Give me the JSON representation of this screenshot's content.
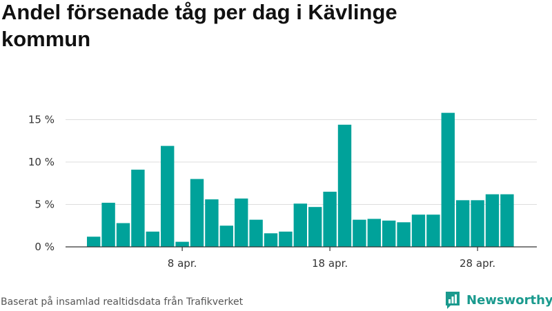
{
  "title": "Andel försenade tåg per dag i Kävlinge kommun",
  "footer": "Baserat på insamlad realtidsdata från Trafikverket",
  "brand": {
    "name": "Newsworthy",
    "icon": "newsworthy-logo-icon",
    "color": "#1a9a8e"
  },
  "chart_data": {
    "type": "bar",
    "title": "Andel försenade tåg per dag i Kävlinge kommun",
    "xlabel": "",
    "ylabel": "",
    "bar_color": "#00a29a",
    "ylim": [
      0,
      16.5
    ],
    "y_ticks": [
      0,
      5,
      10,
      15
    ],
    "y_tick_labels": [
      "0 %",
      "5 %",
      "10 %",
      "15 %"
    ],
    "x_ticks": [
      "2024-04-08",
      "2024-04-18",
      "2024-04-28"
    ],
    "x_tick_labels": [
      "8 apr.",
      "18 apr.",
      "28 apr."
    ],
    "grid": true,
    "categories": [
      "2024-04-02",
      "2024-04-03",
      "2024-04-04",
      "2024-04-05",
      "2024-04-06",
      "2024-04-07",
      "2024-04-08",
      "2024-04-09",
      "2024-04-10",
      "2024-04-11",
      "2024-04-12",
      "2024-04-13",
      "2024-04-14",
      "2024-04-15",
      "2024-04-16",
      "2024-04-17",
      "2024-04-18",
      "2024-04-19",
      "2024-04-20",
      "2024-04-21",
      "2024-04-22",
      "2024-04-23",
      "2024-04-24",
      "2024-04-25",
      "2024-04-26",
      "2024-04-27",
      "2024-04-28",
      "2024-04-29",
      "2024-04-30"
    ],
    "values": [
      1.2,
      5.2,
      2.8,
      9.1,
      1.8,
      11.9,
      0.6,
      8.0,
      5.6,
      2.5,
      5.7,
      3.2,
      1.6,
      1.8,
      5.1,
      4.7,
      6.5,
      14.4,
      3.2,
      3.3,
      3.1,
      2.9,
      3.8,
      3.8,
      15.8,
      5.5,
      5.5,
      6.2,
      6.2
    ]
  }
}
